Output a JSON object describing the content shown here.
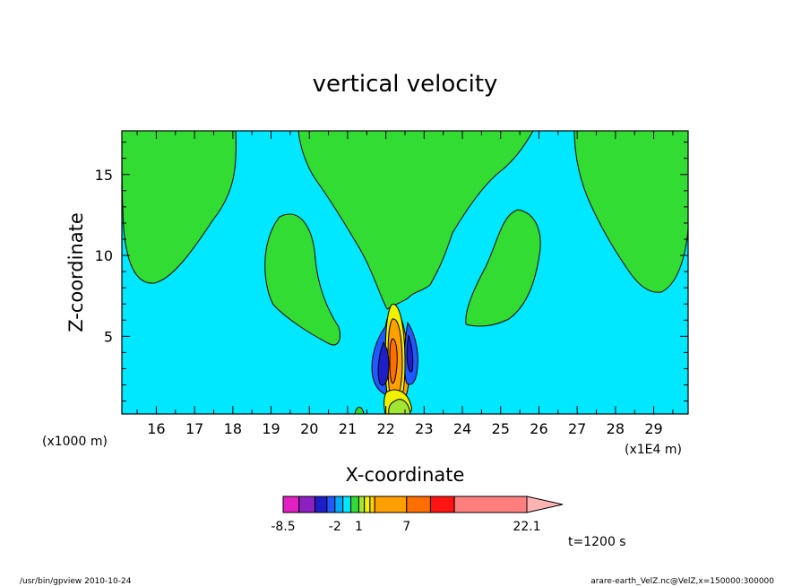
{
  "chart_data": {
    "type": "contour",
    "title": "vertical velocity",
    "xlabel": "X-coordinate",
    "ylabel": "Z-coordinate",
    "x_unit": "(x1E4 m)",
    "y_unit": "(x1000 m)",
    "xlim": [
      15.1,
      29.9
    ],
    "ylim": [
      0.2,
      17.7
    ],
    "x_ticks": [
      "16",
      "17",
      "18",
      "19",
      "20",
      "21",
      "22",
      "23",
      "24",
      "25",
      "26",
      "27",
      "28",
      "29"
    ],
    "y_ticks": [
      "5",
      "10",
      "15"
    ],
    "colorbar": {
      "tick_labels": [
        "-8.5",
        "-2",
        "1",
        "7",
        "22.1"
      ],
      "levels": [
        {
          "from": -8.5,
          "to": -6.5,
          "color": "#e020c0"
        },
        {
          "from": -6.5,
          "to": -4.5,
          "color": "#8c20c0"
        },
        {
          "from": -4.5,
          "to": -3.0,
          "color": "#1e1ec8"
        },
        {
          "from": -3.0,
          "to": -2.0,
          "color": "#1e5aff"
        },
        {
          "from": -2.0,
          "to": -1.0,
          "color": "#00aaff"
        },
        {
          "from": -1.0,
          "to": 0.0,
          "color": "#00e8ff"
        },
        {
          "from": 0.0,
          "to": 1.0,
          "color": "#32dc32"
        },
        {
          "from": 1.0,
          "to": 1.7,
          "color": "#a0e632"
        },
        {
          "from": 1.7,
          "to": 2.4,
          "color": "#f0f000"
        },
        {
          "from": 2.4,
          "to": 3.0,
          "color": "#ffd200"
        },
        {
          "from": 3.0,
          "to": 7.0,
          "color": "#ffa000"
        },
        {
          "from": 7.0,
          "to": 10.0,
          "color": "#ff6e00"
        },
        {
          "from": 10.0,
          "to": 13.0,
          "color": "#ff1414"
        },
        {
          "from": 13.0,
          "to": 22.1,
          "color": "#ff7f7f"
        },
        {
          "from": 22.1,
          "to": null,
          "color": "#ffb4b4"
        }
      ]
    },
    "background_color": "#00e8ff",
    "positive_region_color": "#32dc32",
    "regions": [
      {
        "name": "green-plume-left",
        "value_range": [
          0,
          1
        ]
      },
      {
        "name": "green-plume-center",
        "value_range": [
          0,
          1
        ]
      },
      {
        "name": "green-plume-right",
        "value_range": [
          0,
          1
        ]
      },
      {
        "name": "green-blob-left",
        "value_range": [
          0,
          1
        ]
      },
      {
        "name": "green-blob-right",
        "value_range": [
          0,
          1
        ]
      },
      {
        "name": "updraft-core",
        "value_range": [
          3,
          22.1
        ]
      },
      {
        "name": "downdraft-left",
        "value_range": [
          -8.5,
          -1
        ]
      },
      {
        "name": "downdraft-right",
        "value_range": [
          -8.5,
          -1
        ]
      }
    ]
  },
  "annotations": {
    "time": "t=1200 s",
    "footer_left": "/usr/bin/gpview   2010-10-24",
    "footer_right": "arare-earth_VelZ.nc@VelZ,x=150000:300000"
  }
}
